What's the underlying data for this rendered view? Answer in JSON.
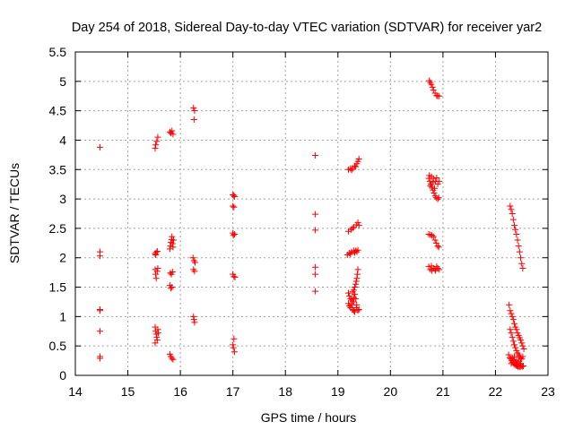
{
  "chart_data": {
    "type": "scatter",
    "title": "Day 254 of 2018, Sidereal Day-to-day VTEC variation (SDTVAR) for receiver yar2",
    "xlabel": "GPS time / hours",
    "ylabel": "SDTVAR / TECUs",
    "xlim": [
      14,
      23
    ],
    "ylim": [
      0,
      5.5
    ],
    "grid": true,
    "marker": "+",
    "color": "#ff0000",
    "xticks": [
      14,
      15,
      16,
      17,
      18,
      19,
      20,
      21,
      22,
      23
    ],
    "xtick_labels": [
      "14",
      "15",
      "16",
      "17",
      "18",
      "19",
      "20",
      "21",
      "22",
      "23"
    ],
    "yticks": [
      0,
      0.5,
      1,
      1.5,
      2,
      2.5,
      3,
      3.5,
      4,
      4.5,
      5,
      5.5
    ],
    "ytick_labels": [
      "0",
      "0.5",
      "1",
      "1.5",
      "2",
      "2.5",
      "3",
      "3.5",
      "4",
      "4.5",
      "5",
      "5.5"
    ],
    "series": [
      {
        "name": "SDTVAR",
        "points": [
          [
            14.47,
            3.88
          ],
          [
            14.47,
            2.1
          ],
          [
            14.47,
            2.03
          ],
          [
            14.47,
            1.12
          ],
          [
            14.47,
            1.1
          ],
          [
            14.47,
            0.75
          ],
          [
            14.47,
            0.32
          ],
          [
            14.47,
            0.29
          ],
          [
            15.52,
            3.86
          ],
          [
            15.53,
            3.92
          ],
          [
            15.55,
            3.98
          ],
          [
            15.57,
            4.05
          ],
          [
            15.52,
            2.07
          ],
          [
            15.54,
            2.09
          ],
          [
            15.56,
            2.11
          ],
          [
            15.53,
            2.05
          ],
          [
            15.52,
            1.8
          ],
          [
            15.53,
            1.72
          ],
          [
            15.54,
            1.65
          ],
          [
            15.56,
            1.77
          ],
          [
            15.57,
            1.82
          ],
          [
            15.52,
            0.82
          ],
          [
            15.53,
            0.75
          ],
          [
            15.54,
            0.7
          ],
          [
            15.55,
            0.65
          ],
          [
            15.56,
            0.6
          ],
          [
            15.52,
            0.55
          ],
          [
            15.57,
            0.78
          ],
          [
            15.58,
            0.72
          ],
          [
            15.8,
            4.14
          ],
          [
            15.82,
            4.12
          ],
          [
            15.84,
            4.16
          ],
          [
            15.86,
            4.1
          ],
          [
            15.8,
            2.15
          ],
          [
            15.81,
            2.2
          ],
          [
            15.82,
            2.26
          ],
          [
            15.83,
            2.31
          ],
          [
            15.84,
            2.36
          ],
          [
            15.85,
            2.24
          ],
          [
            15.86,
            2.18
          ],
          [
            15.87,
            2.3
          ],
          [
            15.81,
            1.74
          ],
          [
            15.83,
            1.72
          ],
          [
            15.85,
            1.76
          ],
          [
            15.8,
            1.53
          ],
          [
            15.82,
            1.48
          ],
          [
            15.84,
            1.5
          ],
          [
            15.8,
            0.36
          ],
          [
            15.82,
            0.32
          ],
          [
            15.84,
            0.29
          ],
          [
            15.86,
            0.27
          ],
          [
            16.25,
            4.55
          ],
          [
            16.27,
            4.5
          ],
          [
            16.26,
            4.35
          ],
          [
            16.24,
            2.0
          ],
          [
            16.26,
            1.95
          ],
          [
            16.28,
            1.92
          ],
          [
            16.25,
            1.8
          ],
          [
            16.27,
            1.77
          ],
          [
            16.25,
            1.0
          ],
          [
            16.26,
            0.95
          ],
          [
            16.27,
            0.9
          ],
          [
            17.0,
            3.07
          ],
          [
            17.02,
            3.06
          ],
          [
            17.03,
            3.04
          ],
          [
            17.0,
            2.88
          ],
          [
            17.02,
            2.86
          ],
          [
            17.0,
            2.42
          ],
          [
            17.01,
            2.38
          ],
          [
            17.03,
            2.4
          ],
          [
            17.0,
            1.72
          ],
          [
            17.02,
            1.68
          ],
          [
            17.04,
            1.67
          ],
          [
            17.02,
            0.62
          ],
          [
            17.0,
            0.52
          ],
          [
            17.01,
            0.47
          ],
          [
            17.03,
            0.4
          ],
          [
            18.57,
            3.74
          ],
          [
            18.57,
            2.74
          ],
          [
            18.57,
            2.47
          ],
          [
            18.57,
            1.84
          ],
          [
            18.57,
            1.72
          ],
          [
            18.57,
            1.43
          ],
          [
            19.2,
            3.5
          ],
          [
            19.24,
            3.52
          ],
          [
            19.28,
            3.52
          ],
          [
            19.32,
            3.56
          ],
          [
            19.36,
            3.6
          ],
          [
            19.38,
            3.64
          ],
          [
            19.4,
            3.68
          ],
          [
            19.26,
            3.49
          ],
          [
            19.34,
            3.55
          ],
          [
            19.2,
            2.45
          ],
          [
            19.25,
            2.48
          ],
          [
            19.3,
            2.52
          ],
          [
            19.35,
            2.56
          ],
          [
            19.38,
            2.6
          ],
          [
            19.4,
            2.55
          ],
          [
            19.28,
            2.5
          ],
          [
            19.18,
            2.05
          ],
          [
            19.22,
            2.08
          ],
          [
            19.26,
            2.1
          ],
          [
            19.3,
            2.12
          ],
          [
            19.34,
            2.12
          ],
          [
            19.38,
            2.13
          ],
          [
            19.24,
            2.06
          ],
          [
            19.32,
            2.09
          ],
          [
            19.36,
            2.1
          ],
          [
            19.38,
            1.8
          ],
          [
            19.37,
            1.72
          ],
          [
            19.36,
            1.65
          ],
          [
            19.35,
            1.6
          ],
          [
            19.34,
            1.55
          ],
          [
            19.32,
            1.5
          ],
          [
            19.3,
            1.45
          ],
          [
            19.28,
            1.42
          ],
          [
            19.2,
            1.4
          ],
          [
            19.22,
            1.35
          ],
          [
            19.24,
            1.3
          ],
          [
            19.26,
            1.28
          ],
          [
            19.28,
            1.25
          ],
          [
            19.3,
            1.32
          ],
          [
            19.32,
            1.38
          ],
          [
            19.34,
            1.3
          ],
          [
            19.2,
            1.22
          ],
          [
            19.22,
            1.18
          ],
          [
            19.24,
            1.15
          ],
          [
            19.26,
            1.2
          ],
          [
            19.28,
            1.12
          ],
          [
            19.3,
            1.1
          ],
          [
            19.32,
            1.08
          ],
          [
            19.35,
            1.15
          ],
          [
            19.38,
            1.1
          ],
          [
            19.4,
            1.12
          ],
          [
            19.36,
            1.2
          ],
          [
            19.3,
            1.25
          ],
          [
            20.74,
            5.01
          ],
          [
            20.76,
            4.98
          ],
          [
            20.78,
            4.95
          ],
          [
            20.8,
            4.9
          ],
          [
            20.82,
            4.85
          ],
          [
            20.85,
            4.8
          ],
          [
            20.88,
            4.76
          ],
          [
            20.9,
            4.75
          ],
          [
            20.93,
            4.75
          ],
          [
            20.73,
            3.35
          ],
          [
            20.75,
            3.3
          ],
          [
            20.77,
            3.25
          ],
          [
            20.79,
            3.2
          ],
          [
            20.81,
            3.15
          ],
          [
            20.83,
            3.1
          ],
          [
            20.85,
            3.05
          ],
          [
            20.87,
            3.02
          ],
          [
            20.9,
            3.0
          ],
          [
            20.92,
            3.02
          ],
          [
            20.74,
            3.4
          ],
          [
            20.78,
            3.38
          ],
          [
            20.82,
            3.35
          ],
          [
            20.86,
            3.3
          ],
          [
            20.9,
            3.25
          ],
          [
            20.93,
            3.3
          ],
          [
            20.8,
            3.28
          ],
          [
            20.88,
            3.36
          ],
          [
            20.76,
            3.22
          ],
          [
            20.84,
            3.18
          ],
          [
            20.73,
            2.4
          ],
          [
            20.76,
            2.39
          ],
          [
            20.79,
            2.38
          ],
          [
            20.82,
            2.36
          ],
          [
            20.85,
            2.3
          ],
          [
            20.87,
            2.25
          ],
          [
            20.9,
            2.2
          ],
          [
            20.92,
            2.18
          ],
          [
            20.73,
            1.85
          ],
          [
            20.76,
            1.8
          ],
          [
            20.79,
            1.78
          ],
          [
            20.82,
            1.82
          ],
          [
            20.85,
            1.8
          ],
          [
            20.88,
            1.85
          ],
          [
            20.9,
            1.82
          ],
          [
            20.93,
            1.8
          ],
          [
            20.78,
            1.86
          ],
          [
            20.86,
            1.78
          ],
          [
            22.28,
            2.88
          ],
          [
            22.3,
            2.82
          ],
          [
            22.32,
            2.75
          ],
          [
            22.34,
            2.65
          ],
          [
            22.36,
            2.55
          ],
          [
            22.38,
            2.48
          ],
          [
            22.4,
            2.4
          ],
          [
            22.42,
            2.3
          ],
          [
            22.44,
            2.2
          ],
          [
            22.46,
            2.1
          ],
          [
            22.48,
            2.0
          ],
          [
            22.5,
            1.9
          ],
          [
            22.52,
            1.82
          ],
          [
            22.26,
            1.2
          ],
          [
            22.28,
            1.1
          ],
          [
            22.3,
            1.05
          ],
          [
            22.32,
            1.0
          ],
          [
            22.34,
            0.95
          ],
          [
            22.36,
            0.88
          ],
          [
            22.38,
            0.82
          ],
          [
            22.4,
            0.78
          ],
          [
            22.42,
            0.72
          ],
          [
            22.44,
            0.68
          ],
          [
            22.46,
            0.64
          ],
          [
            22.48,
            0.6
          ],
          [
            22.5,
            0.55
          ],
          [
            22.52,
            0.5
          ],
          [
            22.54,
            0.45
          ],
          [
            22.28,
            0.78
          ],
          [
            22.3,
            0.72
          ],
          [
            22.32,
            0.65
          ],
          [
            22.34,
            0.58
          ],
          [
            22.36,
            0.52
          ],
          [
            22.38,
            0.47
          ],
          [
            22.4,
            0.42
          ],
          [
            22.42,
            0.38
          ],
          [
            22.44,
            0.35
          ],
          [
            22.46,
            0.32
          ],
          [
            22.48,
            0.3
          ],
          [
            22.5,
            0.28
          ],
          [
            22.52,
            0.32
          ],
          [
            22.25,
            0.35
          ],
          [
            22.27,
            0.3
          ],
          [
            22.29,
            0.28
          ],
          [
            22.31,
            0.25
          ],
          [
            22.33,
            0.22
          ],
          [
            22.35,
            0.2
          ],
          [
            22.37,
            0.18
          ],
          [
            22.39,
            0.17
          ],
          [
            22.41,
            0.16
          ],
          [
            22.43,
            0.15
          ],
          [
            22.45,
            0.15
          ],
          [
            22.47,
            0.14
          ],
          [
            22.49,
            0.16
          ],
          [
            22.51,
            0.15
          ],
          [
            22.53,
            0.16
          ],
          [
            22.3,
            0.2
          ],
          [
            22.32,
            0.3
          ],
          [
            22.34,
            0.25
          ],
          [
            22.36,
            0.32
          ],
          [
            22.38,
            0.22
          ],
          [
            22.4,
            0.26
          ],
          [
            22.42,
            0.2
          ],
          [
            22.44,
            0.24
          ],
          [
            22.46,
            0.18
          ],
          [
            22.48,
            0.2
          ]
        ]
      }
    ]
  }
}
